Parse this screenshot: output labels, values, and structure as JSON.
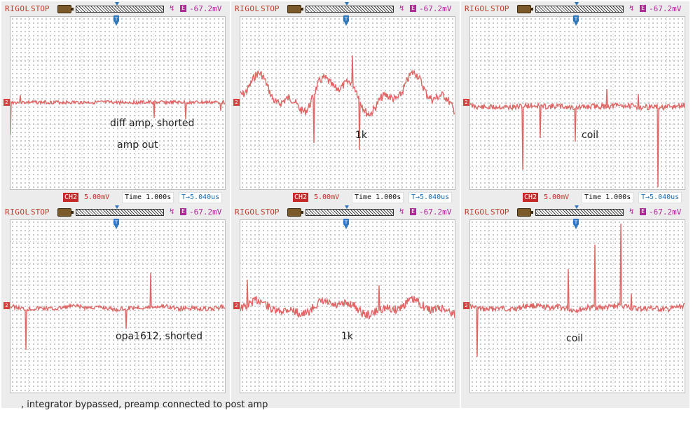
{
  "scope_header": {
    "brand": "RIGOL",
    "state": "STOP",
    "trigger_level": "-67.2mV",
    "edge_symbol": "↯",
    "trigger_source": "E"
  },
  "scope_footer": {
    "channel": "CH2",
    "volts_div": "5.00mV",
    "time": "Time 1.000s",
    "offset": "5.040us"
  },
  "panels": [
    {
      "id": "top-left",
      "captions": [
        "diff amp, shorted",
        "amp out"
      ],
      "has_footer": true
    },
    {
      "id": "top-middle",
      "captions": [
        "1k"
      ],
      "has_footer": true
    },
    {
      "id": "top-right",
      "captions": [
        "coil"
      ],
      "has_footer": true
    },
    {
      "id": "bottom-left",
      "captions": [
        "opa1612, shorted"
      ],
      "has_footer": false
    },
    {
      "id": "bottom-middle",
      "captions": [
        "1k"
      ],
      "has_footer": false
    },
    {
      "id": "bottom-right",
      "captions": [
        "coil"
      ],
      "has_footer": false
    }
  ],
  "footnote": ", integrator bypassed,  preamp connected to post amp",
  "colors": {
    "trace": "#e06666",
    "accent": "#c62828",
    "trigger": "#b0279b",
    "marker": "#2b78c2"
  }
}
